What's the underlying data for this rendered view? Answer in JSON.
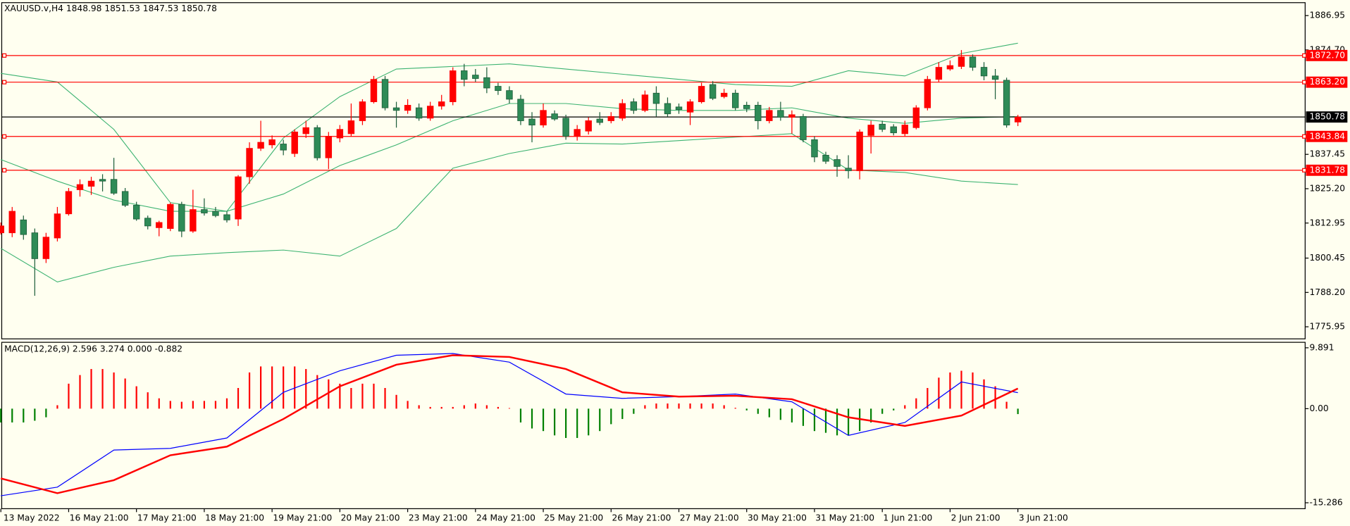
{
  "chart_data": [
    {
      "type": "candlestick",
      "title": "XAUUSD.v,H4  1848.98 1851.53 1847.53 1850.78",
      "categories": [
        "13 May 2022",
        null,
        null,
        null,
        null,
        null,
        "16 May 21:00",
        null,
        null,
        null,
        null,
        null,
        "17 May 21:00",
        null,
        null,
        null,
        null,
        null,
        "18 May 21:00",
        null,
        null,
        null,
        null,
        null,
        "19 May 21:00",
        null,
        null,
        null,
        null,
        null,
        "20 May 21:00",
        null,
        null,
        null,
        null,
        null,
        "23 May 21:00",
        null,
        null,
        null,
        null,
        null,
        "24 May 21:00",
        null,
        null,
        null,
        null,
        null,
        "25 May 21:00",
        null,
        null,
        null,
        null,
        null,
        "26 May 21:00",
        null,
        null,
        null,
        null,
        null,
        "27 May 21:00",
        null,
        null,
        null,
        null,
        null,
        "30 May 21:00",
        null,
        null,
        null,
        null,
        null,
        "31 May 21:00",
        null,
        null,
        null,
        null,
        null,
        "1 Jun 21:00",
        null,
        null,
        null,
        null,
        null,
        "2 Jun 21:00",
        null,
        null,
        null,
        null,
        null,
        "3 Jun 21:00"
      ],
      "open": [
        1809.46,
        1809.46,
        1814.07,
        1809.46,
        1800.24,
        1807.62,
        1816.23,
        1824.83,
        1826.07,
        1828.52,
        1828.52,
        1824.22,
        1819.3,
        1814.69,
        1811.3,
        1811.0,
        1819.61,
        1810.07,
        1817.76,
        1817.15,
        1815.92,
        1814.38,
        1829.45,
        1839.6,
        1840.83,
        1841.14,
        1837.75,
        1844.82,
        1846.98,
        1836.21,
        1843.29,
        1844.82,
        1849.44,
        1856.2,
        1864.19,
        1854.05,
        1853.13,
        1854.05,
        1850.36,
        1854.66,
        1856.2,
        1867.27,
        1865.73,
        1864.8,
        1861.73,
        1860.2,
        1857.12,
        1850.05,
        1847.9,
        1851.9,
        1850.36,
        1843.9,
        1845.75,
        1850.05,
        1849.44,
        1850.36,
        1856.2,
        1853.13,
        1859.28,
        1855.59,
        1854.36,
        1852.51,
        1856.2,
        1862.35,
        1858.05,
        1859.28,
        1854.97,
        1854.97,
        1849.44,
        1853.13,
        1850.67,
        1850.97,
        1842.67,
        1837.14,
        1835.6,
        1832.52,
        1831.6,
        1844.21,
        1848.21,
        1847.29,
        1844.82,
        1846.98,
        1854.05,
        1864.19,
        1867.89,
        1868.81,
        1872.19,
        1868.5,
        1865.42,
        1863.88,
        1848.98
      ],
      "high": [
        1813.15,
        1818.69,
        1815.61,
        1811.0,
        1809.46,
        1818.69,
        1825.45,
        1828.52,
        1829.45,
        1830.37,
        1836.21,
        1825.45,
        1820.53,
        1815.61,
        1813.77,
        1820.22,
        1820.53,
        1824.83,
        1821.76,
        1818.69,
        1817.15,
        1830.06,
        1841.75,
        1849.44,
        1844.21,
        1842.67,
        1846.36,
        1849.44,
        1847.9,
        1845.44,
        1847.9,
        1855.59,
        1857.12,
        1865.42,
        1865.42,
        1856.2,
        1857.12,
        1855.59,
        1856.2,
        1858.66,
        1868.5,
        1869.73,
        1867.89,
        1868.5,
        1862.96,
        1861.73,
        1858.66,
        1852.51,
        1855.59,
        1853.13,
        1851.59,
        1847.9,
        1850.67,
        1852.51,
        1852.51,
        1857.12,
        1857.43,
        1860.2,
        1861.73,
        1857.74,
        1855.59,
        1857.12,
        1862.96,
        1863.58,
        1860.81,
        1860.5,
        1856.2,
        1856.2,
        1854.36,
        1856.2,
        1853.13,
        1851.9,
        1843.9,
        1838.37,
        1837.14,
        1837.14,
        1846.36,
        1849.44,
        1849.44,
        1848.21,
        1849.44,
        1854.97,
        1865.42,
        1870.35,
        1870.96,
        1874.65,
        1873.11,
        1870.35,
        1867.89,
        1864.8,
        1851.53
      ],
      "low": [
        1808.85,
        1807.92,
        1807.0,
        1787.0,
        1798.7,
        1806.39,
        1815.61,
        1822.38,
        1822.99,
        1824.22,
        1822.99,
        1818.69,
        1813.77,
        1810.69,
        1808.23,
        1810.07,
        1807.92,
        1809.46,
        1815.61,
        1815.0,
        1813.15,
        1811.92,
        1826.98,
        1838.68,
        1839.6,
        1837.14,
        1836.52,
        1843.29,
        1835.29,
        1832.21,
        1841.75,
        1843.9,
        1847.9,
        1855.59,
        1853.13,
        1846.98,
        1851.9,
        1849.44,
        1849.44,
        1853.43,
        1854.97,
        1861.73,
        1863.27,
        1859.28,
        1858.66,
        1855.59,
        1847.9,
        1841.75,
        1846.98,
        1849.44,
        1842.67,
        1842.36,
        1844.52,
        1847.9,
        1848.52,
        1849.44,
        1851.9,
        1852.51,
        1850.97,
        1850.97,
        1851.9,
        1847.9,
        1855.59,
        1856.82,
        1857.43,
        1853.13,
        1852.51,
        1846.36,
        1848.52,
        1849.44,
        1844.82,
        1841.75,
        1834.67,
        1834.06,
        1829.45,
        1828.83,
        1828.52,
        1837.75,
        1845.44,
        1844.21,
        1843.9,
        1846.36,
        1853.13,
        1863.27,
        1867.27,
        1867.89,
        1867.27,
        1863.88,
        1857.12,
        1846.98,
        1847.53
      ],
      "close": [
        1811.92,
        1817.15,
        1808.85,
        1800.24,
        1807.92,
        1816.23,
        1824.22,
        1826.68,
        1827.91,
        1827.91,
        1823.6,
        1819.3,
        1814.38,
        1811.92,
        1813.15,
        1819.61,
        1810.07,
        1817.76,
        1816.53,
        1815.61,
        1814.07,
        1829.45,
        1839.6,
        1841.75,
        1842.67,
        1838.98,
        1845.44,
        1846.98,
        1836.21,
        1843.9,
        1846.36,
        1849.44,
        1856.2,
        1864.19,
        1854.05,
        1853.13,
        1854.97,
        1850.36,
        1854.66,
        1856.2,
        1867.27,
        1864.19,
        1864.5,
        1861.12,
        1860.2,
        1857.12,
        1849.44,
        1847.9,
        1853.13,
        1850.05,
        1843.9,
        1846.36,
        1849.44,
        1848.82,
        1850.97,
        1855.59,
        1853.13,
        1858.66,
        1855.59,
        1851.9,
        1853.43,
        1856.2,
        1861.73,
        1857.43,
        1859.28,
        1854.05,
        1853.74,
        1849.44,
        1853.13,
        1850.67,
        1851.59,
        1842.67,
        1836.52,
        1834.98,
        1833.14,
        1831.6,
        1845.44,
        1847.9,
        1846.36,
        1845.13,
        1847.9,
        1854.05,
        1864.19,
        1868.5,
        1869.12,
        1872.19,
        1868.5,
        1865.42,
        1864.19,
        1847.9,
        1850.78
      ],
      "up_color": "#ff0000",
      "down_color": "#2e8b57",
      "bands": [
        {
          "x": [
            0,
            5,
            10,
            15,
            20,
            25,
            30,
            35,
            40,
            45,
            50,
            55,
            60,
            65,
            70,
            75,
            80,
            85,
            90
          ],
          "values": [
            1866.35,
            1863.27,
            1846.36,
            1820.22,
            1817.15,
            1843.29,
            1858.05,
            1867.89,
            1868.81,
            1869.73,
            1867.89,
            1866.04,
            1864.19,
            1862.35,
            1861.73,
            1867.27,
            1865.42,
            1873.42,
            1877.1
          ],
          "color": "#3cb371"
        },
        {
          "x": [
            0,
            5,
            10,
            15,
            20,
            25,
            30,
            35,
            40,
            45,
            50,
            55,
            60,
            65,
            70,
            75,
            80,
            85,
            90
          ],
          "values": [
            1835.6,
            1827.91,
            1821.15,
            1817.15,
            1817.15,
            1823.29,
            1833.45,
            1840.83,
            1849.44,
            1855.59,
            1855.59,
            1853.74,
            1853.13,
            1853.13,
            1854.05,
            1850.36,
            1848.52,
            1850.36,
            1850.97
          ],
          "color": "#3cb371"
        },
        {
          "x": [
            0,
            5,
            10,
            15,
            20,
            25,
            30,
            35,
            40,
            45,
            50,
            55,
            60,
            65,
            70,
            75,
            80,
            85,
            90
          ],
          "values": [
            1803.92,
            1791.93,
            1797.15,
            1801.16,
            1802.39,
            1803.31,
            1801.16,
            1811.0,
            1832.52,
            1837.75,
            1841.44,
            1841.14,
            1842.36,
            1843.59,
            1844.82,
            1831.91,
            1830.99,
            1827.91,
            1826.68
          ],
          "color": "#3cb371"
        }
      ],
      "levels": [
        {
          "value": 1872.7,
          "label": "1872.70"
        },
        {
          "value": 1863.2,
          "label": "1863.20"
        },
        {
          "value": 1843.84,
          "label": "1843.84"
        },
        {
          "value": 1831.78,
          "label": "1831.78"
        }
      ],
      "level_color": "#ff0000",
      "current": {
        "value": 1850.78,
        "label": "1850.78"
      },
      "current_color": "#000000",
      "ylim": [
        1771.64,
        1891.56
      ],
      "yticks": [
        1886.95,
        {
          "value": 1874.7,
          "label": "1874.70"
        },
        1837.45,
        {
          "value": 1825.2,
          "label": "1825.20"
        },
        1812.95,
        1800.45,
        {
          "value": 1788.2,
          "label": "1788.20"
        },
        1775.95
      ]
    },
    {
      "type": "macd",
      "title": "MACD(12,26,9) 2.596 3.274 0.000 -0.882",
      "histogram": [
        -2.24,
        -2.24,
        -2.24,
        -1.96,
        -1.4,
        0.56,
        4.06,
        5.46,
        6.44,
        6.44,
        5.88,
        4.9,
        3.64,
        2.66,
        1.68,
        1.26,
        1.12,
        1.26,
        1.26,
        1.26,
        1.68,
        3.36,
        5.88,
        6.86,
        6.86,
        6.86,
        6.86,
        6.44,
        5.46,
        4.76,
        4.06,
        3.36,
        4.06,
        4.06,
        3.36,
        2.24,
        1.26,
        0.56,
        0.28,
        0.28,
        0.28,
        0.56,
        0.84,
        0.56,
        0.28,
        0.1,
        -2.24,
        -3.22,
        -3.64,
        -4.34,
        -4.76,
        -4.76,
        -4.34,
        -3.64,
        -2.52,
        -1.68,
        -0.84,
        0.56,
        0.84,
        0.84,
        0.84,
        0.84,
        0.84,
        0.84,
        0.56,
        0.14,
        -0.28,
        -0.84,
        -1.4,
        -1.82,
        -2.24,
        -2.8,
        -3.64,
        -3.92,
        -4.34,
        -4.34,
        -3.64,
        -2.24,
        -0.84,
        -0.28,
        0.56,
        1.68,
        3.36,
        5.04,
        5.88,
        6.16,
        5.88,
        4.76,
        3.64,
        1.12,
        -0.882
      ],
      "up_color": "#ff0000",
      "down_color": "#008000",
      "series": [
        {
          "x": [
            0,
            5,
            10,
            15,
            20,
            25,
            30,
            35,
            40,
            45,
            50,
            55,
            60,
            65,
            70,
            75,
            80,
            85,
            90
          ],
          "values": [
            -14.15,
            -12.75,
            -6.72,
            -6.44,
            -4.76,
            2.66,
            6.16,
            8.68,
            8.96,
            7.56,
            2.38,
            1.68,
            1.96,
            2.38,
            1.12,
            -4.34,
            -2.24,
            4.34,
            2.596
          ],
          "color": "#0000ff"
        },
        {
          "x": [
            0,
            5,
            10,
            15,
            20,
            25,
            30,
            35,
            40,
            45,
            50,
            55,
            60,
            65,
            70,
            75,
            80,
            85,
            90
          ],
          "values": [
            -11.34,
            -13.73,
            -11.62,
            -7.56,
            -6.16,
            -1.68,
            3.64,
            7.14,
            8.68,
            8.4,
            6.44,
            2.66,
            1.96,
            2.1,
            1.54,
            -1.4,
            -2.8,
            -1.12,
            3.274
          ],
          "color": "#ff0000"
        }
      ],
      "ylim": [
        -16.25,
        10.78
      ],
      "yticks": [
        9.891,
        {
          "value": 0,
          "label": "0.00"
        },
        -15.286
      ]
    }
  ]
}
